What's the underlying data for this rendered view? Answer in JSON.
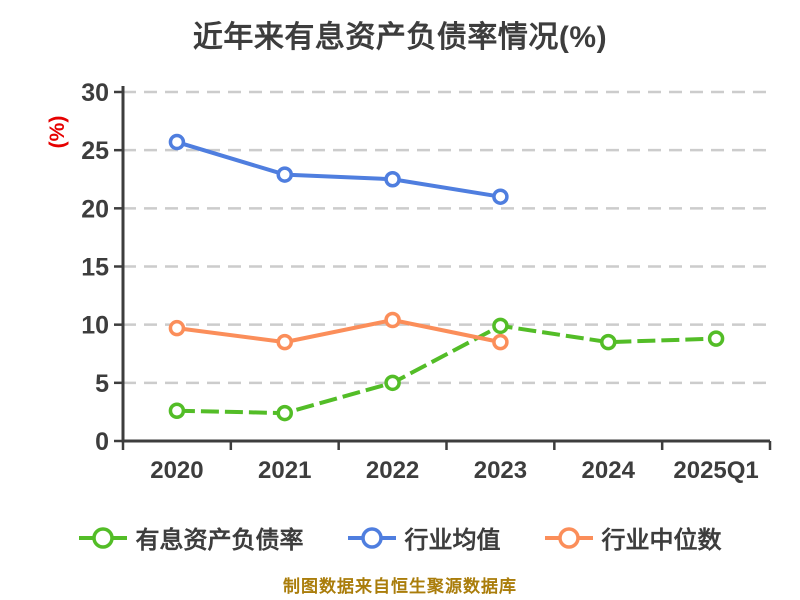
{
  "chart_data": {
    "type": "line",
    "title": "近年来有息资产负债率情况(%)",
    "ylabel": "(%)",
    "xlabel": "",
    "categories": [
      "2020",
      "2021",
      "2022",
      "2023",
      "2024",
      "2025Q1"
    ],
    "series": [
      {
        "name": "有息资产负债率",
        "color": "#53bd27",
        "line_style": "dashed",
        "values": [
          2.6,
          2.4,
          5.0,
          9.9,
          8.5,
          8.8
        ]
      },
      {
        "name": "行业均值",
        "color": "#4f7edf",
        "line_style": "solid",
        "values": [
          25.7,
          22.9,
          22.5,
          21.0,
          null,
          null
        ]
      },
      {
        "name": "行业中位数",
        "color": "#fb8e5a",
        "line_style": "solid",
        "values": [
          9.7,
          8.5,
          10.4,
          8.5,
          null,
          null
        ]
      }
    ],
    "ylim": [
      0,
      30
    ],
    "yticks": [
      0,
      5,
      10,
      15,
      20,
      25,
      30
    ],
    "grid": "horizontal-dashed",
    "legend_position": "bottom",
    "marker": "white-filled-circle"
  },
  "colors": {
    "text": "#3d3d3d",
    "axis": "#3d3d3d",
    "gridline": "#cccccc",
    "ylabel_red": "#e60000",
    "footer_gold": "#aa7d0b",
    "background": "#ffffff",
    "marker_fill": "#ffffff"
  },
  "footer": {
    "text": "制图数据来自恒生聚源数据库"
  }
}
